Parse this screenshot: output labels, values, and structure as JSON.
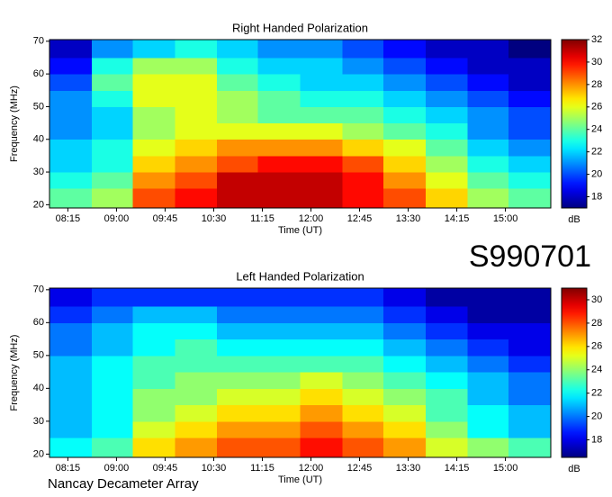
{
  "label": "S990701",
  "footer": "Nancay Decameter Array",
  "chart_data": [
    {
      "type": "heatmap",
      "title": "Right Handed Polarization",
      "xlabel": "Time (UT)",
      "ylabel": "Frequency (MHz)",
      "colormap": "jet",
      "xbins": [
        478,
        517,
        555,
        594,
        633,
        671,
        710,
        749,
        787,
        826,
        865,
        903,
        942
      ],
      "ybins": [
        19,
        25,
        30,
        35,
        40,
        45,
        50,
        55,
        60,
        65,
        70.5
      ],
      "values": [
        [
          24,
          25,
          29,
          30,
          31,
          31,
          31,
          30,
          29,
          27,
          25,
          24
        ],
        [
          23,
          24,
          28,
          29,
          31,
          31,
          31,
          30,
          28,
          26,
          24,
          23
        ],
        [
          22,
          23,
          27,
          28,
          29,
          30,
          30,
          29,
          27,
          25,
          23,
          22
        ],
        [
          22,
          23,
          26,
          27,
          28,
          28,
          28,
          27,
          26,
          24,
          22,
          21
        ],
        [
          21,
          22,
          25,
          26,
          26,
          26,
          26,
          25,
          24,
          23,
          21,
          20
        ],
        [
          21,
          22,
          25,
          26,
          25,
          24,
          24,
          24,
          23,
          22,
          21,
          20
        ],
        [
          21,
          23,
          26,
          26,
          25,
          24,
          23,
          23,
          22,
          21,
          20,
          19
        ],
        [
          20,
          24,
          26,
          26,
          24,
          23,
          22,
          22,
          21,
          20,
          19,
          18
        ],
        [
          19,
          23,
          25,
          25,
          23,
          22,
          22,
          21,
          20,
          19,
          18,
          18
        ],
        [
          18,
          21,
          22,
          23,
          22,
          21,
          21,
          20,
          19,
          18,
          18,
          17
        ]
      ],
      "xlim": [
        478,
        942
      ],
      "xticks": [
        {
          "value": 495,
          "label": "08:15"
        },
        {
          "value": 540,
          "label": "09:00"
        },
        {
          "value": 585,
          "label": "09:45"
        },
        {
          "value": 630,
          "label": "10:30"
        },
        {
          "value": 675,
          "label": "11:15"
        },
        {
          "value": 720,
          "label": "12:00"
        },
        {
          "value": 765,
          "label": "12:45"
        },
        {
          "value": 810,
          "label": "13:30"
        },
        {
          "value": 855,
          "label": "14:15"
        },
        {
          "value": 900,
          "label": "15:00"
        }
      ],
      "ylim": [
        19,
        70.5
      ],
      "yticks": [
        20,
        30,
        40,
        50,
        60,
        70
      ],
      "colorbar": {
        "label": "dB",
        "lim": [
          17,
          32
        ],
        "ticks": [
          18,
          20,
          22,
          24,
          26,
          28,
          30,
          32
        ]
      }
    },
    {
      "type": "heatmap",
      "title": "Left Handed Polarization",
      "xlabel": "Time (UT)",
      "ylabel": "Frequency (MHz)",
      "colormap": "jet",
      "xbins": [
        478,
        517,
        555,
        594,
        633,
        671,
        710,
        749,
        787,
        826,
        865,
        903,
        942
      ],
      "ybins": [
        19,
        25,
        30,
        35,
        40,
        45,
        50,
        55,
        60,
        65,
        70.5
      ],
      "values": [
        [
          22,
          23,
          26,
          27,
          28,
          28,
          29,
          28,
          27,
          25,
          24,
          23
        ],
        [
          21,
          22,
          25,
          26,
          27,
          27,
          28,
          27,
          26,
          24,
          22,
          21
        ],
        [
          21,
          22,
          24,
          25,
          26,
          26,
          27,
          26,
          25,
          23,
          22,
          21
        ],
        [
          21,
          22,
          24,
          24,
          25,
          25,
          26,
          25,
          24,
          23,
          21,
          20
        ],
        [
          21,
          22,
          23,
          24,
          24,
          24,
          25,
          24,
          23,
          22,
          21,
          20
        ],
        [
          21,
          22,
          23,
          23,
          23,
          23,
          23,
          23,
          22,
          21,
          20,
          19
        ],
        [
          20,
          21,
          22,
          23,
          22,
          22,
          22,
          22,
          21,
          20,
          19,
          18
        ],
        [
          20,
          21,
          22,
          22,
          21,
          21,
          21,
          21,
          20,
          19,
          18,
          18
        ],
        [
          19,
          20,
          21,
          21,
          20,
          20,
          20,
          20,
          19,
          18,
          17,
          17
        ],
        [
          18,
          19,
          19,
          19,
          19,
          19,
          19,
          19,
          18,
          17,
          17,
          17
        ]
      ],
      "xlim": [
        478,
        942
      ],
      "xticks": [
        {
          "value": 495,
          "label": "08:15"
        },
        {
          "value": 540,
          "label": "09:00"
        },
        {
          "value": 585,
          "label": "09:45"
        },
        {
          "value": 630,
          "label": "10:30"
        },
        {
          "value": 675,
          "label": "11:15"
        },
        {
          "value": 720,
          "label": "12:00"
        },
        {
          "value": 765,
          "label": "12:45"
        },
        {
          "value": 810,
          "label": "13:30"
        },
        {
          "value": 855,
          "label": "14:15"
        },
        {
          "value": 900,
          "label": "15:00"
        }
      ],
      "ylim": [
        19,
        70.5
      ],
      "yticks": [
        20,
        30,
        40,
        50,
        60,
        70
      ],
      "colorbar": {
        "label": "dB",
        "lim": [
          16.5,
          31
        ],
        "ticks": [
          18,
          20,
          22,
          24,
          26,
          28,
          30
        ]
      }
    }
  ]
}
